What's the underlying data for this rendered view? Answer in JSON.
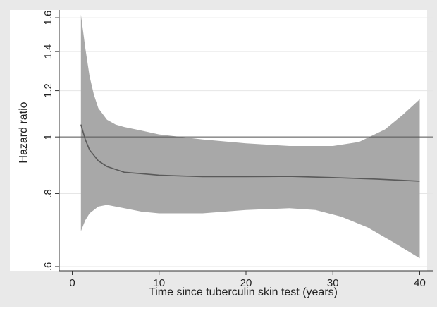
{
  "chart_data": {
    "type": "line",
    "title": "",
    "xlabel": "Time since tuberculin skin test (years)",
    "ylabel": "Hazard ratio",
    "y_scale": "log",
    "xlim": [
      -1.5,
      41.5
    ],
    "ylim": [
      0.59,
      1.65
    ],
    "x_ticks": [
      0,
      10,
      20,
      30,
      40
    ],
    "y_ticks": [
      0.6,
      0.8,
      1,
      1.2,
      1.4,
      1.6
    ],
    "y_tick_labels": [
      ".6",
      ".8",
      "1",
      "1.2",
      "1.4",
      "1.6"
    ],
    "reference_line": 1,
    "grid": true,
    "series": [
      {
        "role": "estimate",
        "x": [
          1,
          1.5,
          2,
          3,
          4,
          5,
          6,
          8,
          10,
          12,
          15,
          20,
          25,
          30,
          35,
          40
        ],
        "y": [
          1.05,
          0.99,
          0.95,
          0.91,
          0.89,
          0.88,
          0.87,
          0.865,
          0.86,
          0.858,
          0.855,
          0.855,
          0.856,
          0.852,
          0.847,
          0.84
        ]
      },
      {
        "role": "ci_upper",
        "x": [
          1,
          1.5,
          2,
          2.5,
          3,
          4,
          5,
          6,
          8,
          10,
          15,
          20,
          25,
          30,
          33,
          36,
          38,
          40
        ],
        "y": [
          1.62,
          1.42,
          1.27,
          1.18,
          1.12,
          1.07,
          1.05,
          1.04,
          1.025,
          1.01,
          0.99,
          0.975,
          0.965,
          0.965,
          0.98,
          1.03,
          1.09,
          1.16
        ]
      },
      {
        "role": "ci_lower",
        "x": [
          1,
          1.5,
          2,
          3,
          4,
          5,
          6,
          8,
          10,
          15,
          20,
          25,
          28,
          31,
          34,
          37,
          40
        ],
        "y": [
          0.69,
          0.72,
          0.74,
          0.76,
          0.765,
          0.76,
          0.755,
          0.745,
          0.74,
          0.74,
          0.75,
          0.755,
          0.75,
          0.73,
          0.7,
          0.66,
          0.62
        ]
      }
    ],
    "colors": {
      "band": "#a8a8a8",
      "line": "#5a5a5a",
      "reference": "#555555",
      "grid": "#e6e6e6",
      "background": "#e9e9e9",
      "plot_background": "#ffffff"
    }
  }
}
